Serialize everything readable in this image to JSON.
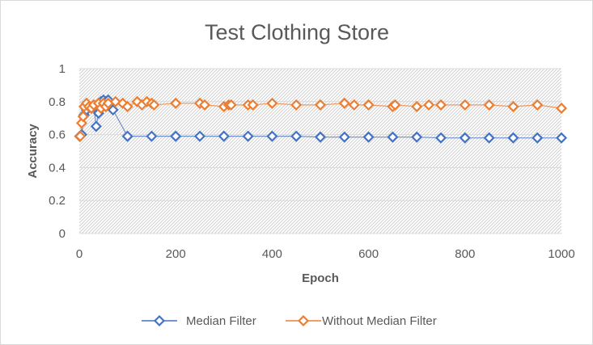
{
  "chart_data": {
    "type": "line",
    "title": "Test Clothing Store",
    "xlabel": "Epoch",
    "ylabel": "Accuracy",
    "xlim": [
      0,
      1000
    ],
    "ylim": [
      0,
      1
    ],
    "x_ticks": [
      "0",
      "200",
      "400",
      "600",
      "800",
      "1000"
    ],
    "y_ticks": [
      "0",
      "0.2",
      "0.4",
      "0.6",
      "0.8",
      "1"
    ],
    "grid": "horizontal",
    "plot_background": "diagonal-hatch",
    "legend_position": "bottom",
    "series": [
      {
        "name": "Median Filter",
        "color": "#4472c4",
        "marker": "diamond",
        "points": [
          [
            1,
            0.59
          ],
          [
            5,
            0.6
          ],
          [
            10,
            0.72
          ],
          [
            15,
            0.75
          ],
          [
            20,
            0.77
          ],
          [
            25,
            0.76
          ],
          [
            30,
            0.77
          ],
          [
            35,
            0.65
          ],
          [
            40,
            0.73
          ],
          [
            45,
            0.8
          ],
          [
            50,
            0.81
          ],
          [
            55,
            0.8
          ],
          [
            60,
            0.81
          ],
          [
            70,
            0.75
          ],
          [
            100,
            0.59
          ],
          [
            150,
            0.59
          ],
          [
            200,
            0.59
          ],
          [
            250,
            0.59
          ],
          [
            300,
            0.59
          ],
          [
            350,
            0.59
          ],
          [
            400,
            0.59
          ],
          [
            450,
            0.59
          ],
          [
            500,
            0.585
          ],
          [
            550,
            0.585
          ],
          [
            600,
            0.585
          ],
          [
            650,
            0.585
          ],
          [
            700,
            0.585
          ],
          [
            750,
            0.58
          ],
          [
            800,
            0.58
          ],
          [
            850,
            0.58
          ],
          [
            900,
            0.58
          ],
          [
            950,
            0.58
          ],
          [
            1000,
            0.58
          ]
        ]
      },
      {
        "name": "Without Median Filter",
        "color": "#ed7d31",
        "marker": "diamond",
        "points": [
          [
            2,
            0.59
          ],
          [
            5,
            0.67
          ],
          [
            8,
            0.71
          ],
          [
            10,
            0.77
          ],
          [
            15,
            0.79
          ],
          [
            20,
            0.77
          ],
          [
            25,
            0.76
          ],
          [
            30,
            0.78
          ],
          [
            40,
            0.79
          ],
          [
            45,
            0.76
          ],
          [
            50,
            0.79
          ],
          [
            55,
            0.77
          ],
          [
            60,
            0.79
          ],
          [
            75,
            0.8
          ],
          [
            90,
            0.79
          ],
          [
            100,
            0.77
          ],
          [
            120,
            0.8
          ],
          [
            130,
            0.78
          ],
          [
            140,
            0.8
          ],
          [
            150,
            0.79
          ],
          [
            155,
            0.78
          ],
          [
            200,
            0.79
          ],
          [
            250,
            0.79
          ],
          [
            260,
            0.78
          ],
          [
            300,
            0.77
          ],
          [
            310,
            0.78
          ],
          [
            315,
            0.78
          ],
          [
            350,
            0.78
          ],
          [
            360,
            0.78
          ],
          [
            400,
            0.79
          ],
          [
            450,
            0.78
          ],
          [
            500,
            0.78
          ],
          [
            550,
            0.79
          ],
          [
            570,
            0.78
          ],
          [
            600,
            0.78
          ],
          [
            650,
            0.77
          ],
          [
            655,
            0.78
          ],
          [
            700,
            0.77
          ],
          [
            725,
            0.78
          ],
          [
            750,
            0.78
          ],
          [
            800,
            0.78
          ],
          [
            850,
            0.78
          ],
          [
            900,
            0.77
          ],
          [
            950,
            0.78
          ],
          [
            1000,
            0.76
          ]
        ]
      }
    ]
  }
}
